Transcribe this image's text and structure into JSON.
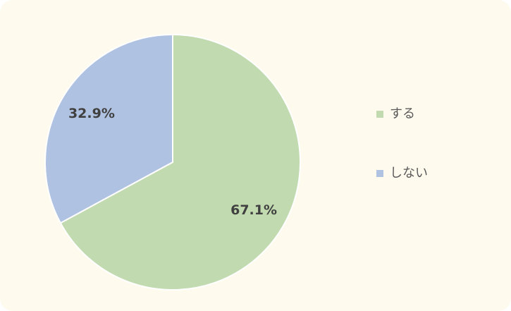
{
  "chart_data": {
    "type": "pie",
    "categories": [
      "する",
      "しない"
    ],
    "values": [
      67.1,
      32.9
    ],
    "value_labels": [
      "67.1%",
      "32.9%"
    ],
    "colors": [
      "#c2dab0",
      "#b0c2e2"
    ],
    "legend": "right"
  }
}
